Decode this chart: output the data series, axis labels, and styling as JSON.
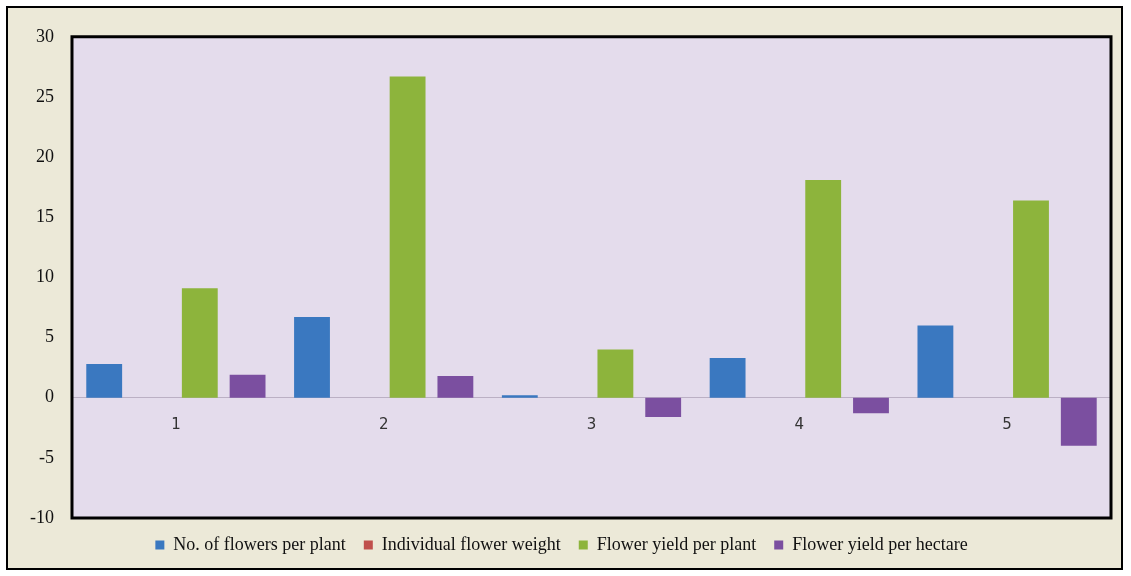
{
  "chart_data": {
    "type": "bar",
    "categories": [
      "1",
      "2",
      "3",
      "4",
      "5"
    ],
    "series": [
      {
        "name": "No. of flowers per plant",
        "color": "#3a78c0",
        "values": [
          2.8,
          6.7,
          0.2,
          3.3,
          6.0
        ]
      },
      {
        "name": "Individual flower weight",
        "color": "#c0504d",
        "values": [
          0,
          0,
          0,
          0,
          0
        ]
      },
      {
        "name": "Flower yield per plant",
        "color": "#8db43c",
        "values": [
          9.1,
          26.7,
          4.0,
          18.1,
          16.4
        ]
      },
      {
        "name": "Flower yield per hectare",
        "color": "#7b4fa0",
        "values": [
          1.9,
          1.8,
          -1.6,
          -1.3,
          -4.0
        ]
      }
    ],
    "ylim": [
      -10,
      30
    ],
    "yticks": [
      -10,
      -5,
      0,
      5,
      10,
      15,
      20,
      25,
      30
    ],
    "grid": false,
    "legend": "bottom"
  }
}
